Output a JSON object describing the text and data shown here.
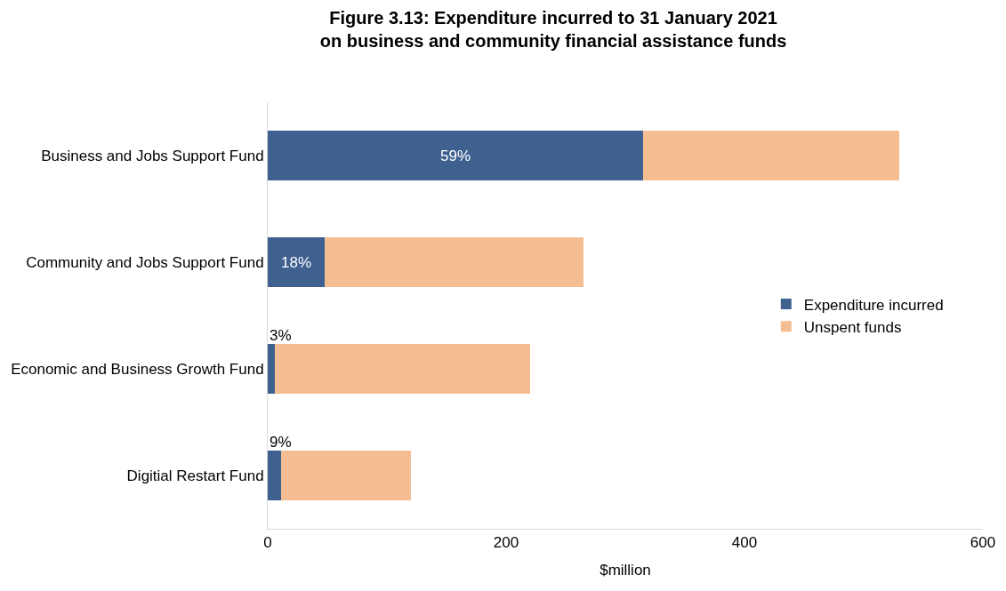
{
  "chart_data": {
    "type": "bar",
    "orientation": "horizontal",
    "stacked": true,
    "title": "Figure 3.13: Expenditure incurred to 31 January 2021\non business and community financial assistance funds",
    "xlabel": "$million",
    "categories": [
      "Business and Jobs Support Fund",
      "Community and Jobs Support Fund",
      "Economic and Business Growth Fund",
      "Digitial Restart Fund"
    ],
    "series": [
      {
        "name": "Expenditure incurred",
        "color": "#3e6190",
        "values": [
          315,
          48,
          6,
          11
        ]
      },
      {
        "name": "Unspent funds",
        "color": "#f5be92",
        "values": [
          215,
          217,
          214,
          109
        ]
      }
    ],
    "xlim": [
      0,
      600
    ],
    "xticks": [
      0,
      200,
      400,
      600
    ],
    "legend": "right",
    "annotations": [
      "59%",
      "18%",
      "3%",
      "9%"
    ]
  }
}
